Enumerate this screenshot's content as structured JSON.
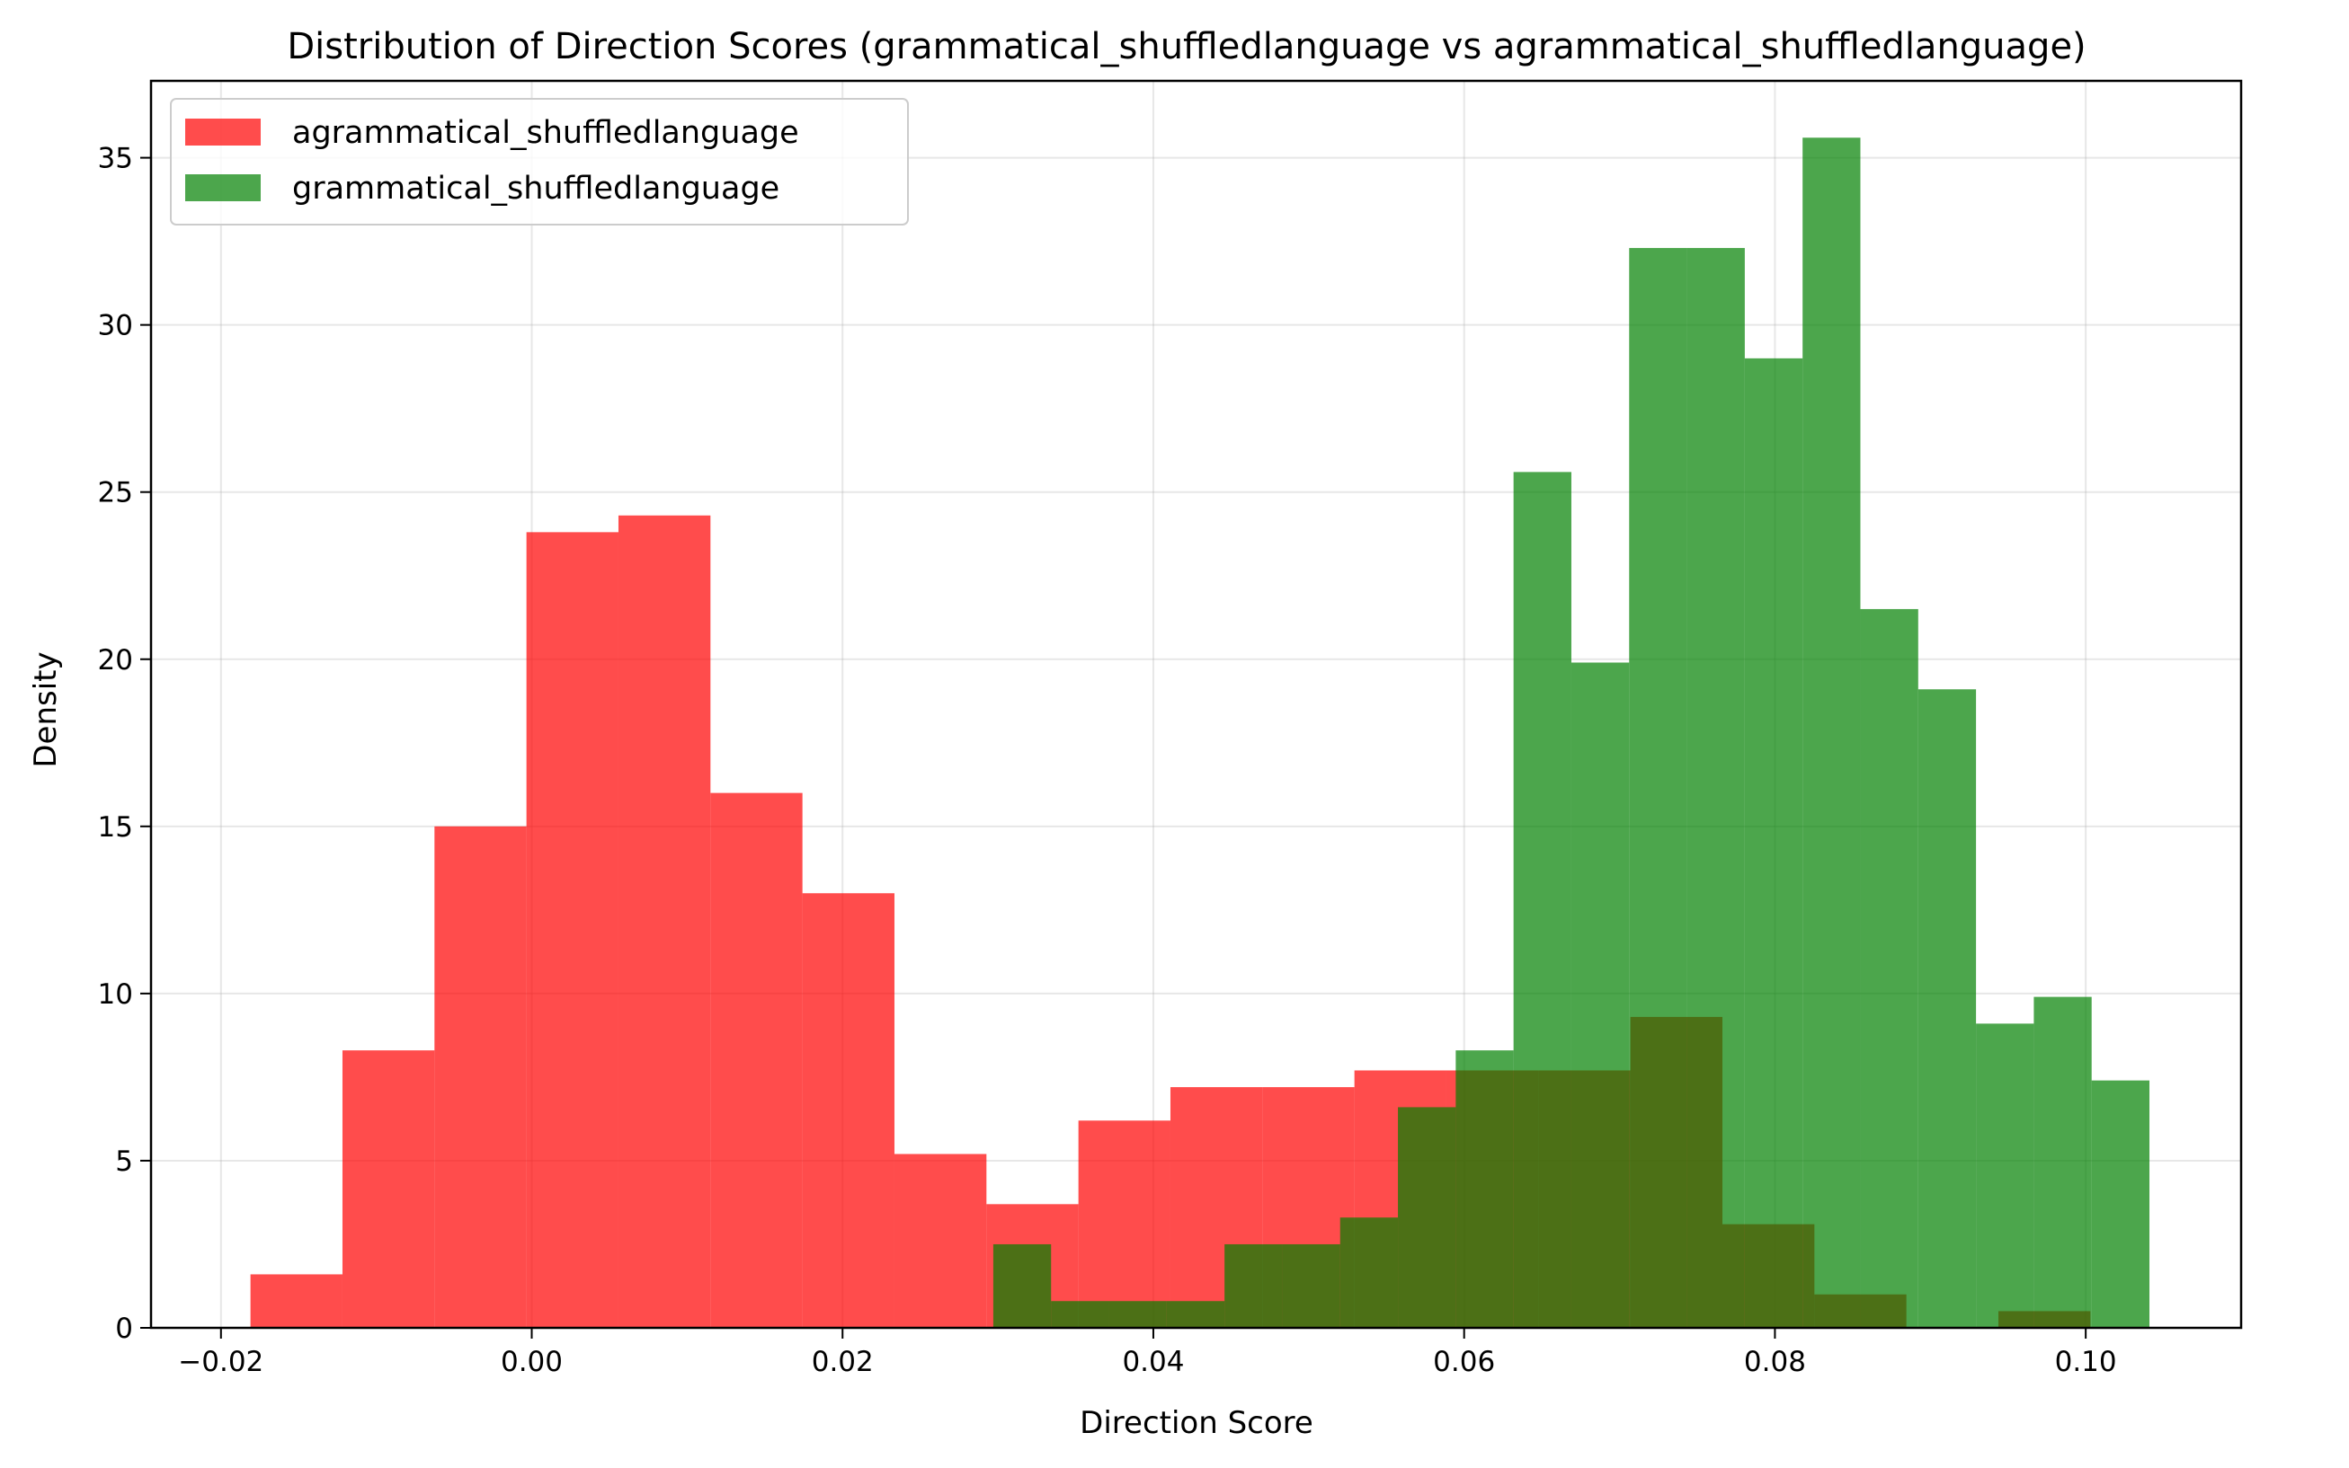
{
  "chart_data": {
    "type": "bar",
    "title": "Distribution of Direction Scores (grammatical_shuffledlanguage vs agrammatical_shuffledlanguage)",
    "xlabel": "Direction Score",
    "ylabel": "Density",
    "xlim": [
      -0.0245,
      0.11
    ],
    "ylim": [
      0,
      37.3
    ],
    "xticks": [
      -0.02,
      0.0,
      0.02,
      0.04,
      0.06,
      0.08,
      0.1
    ],
    "xtick_labels": [
      "−0.02",
      "0.00",
      "0.02",
      "0.04",
      "0.06",
      "0.08",
      "0.10"
    ],
    "yticks": [
      0,
      5,
      10,
      15,
      20,
      25,
      30,
      35
    ],
    "ytick_labels": [
      "0",
      "5",
      "10",
      "15",
      "20",
      "25",
      "30",
      "35"
    ],
    "grid": true,
    "legend_position": "top-left",
    "series": [
      {
        "name": "agrammatical_shuffledlanguage",
        "color": "#ff0000",
        "alpha": 0.7,
        "bin_edges": [
          -0.0181,
          -0.01218,
          -0.00626,
          -0.00034,
          0.00558,
          0.0115,
          0.01742,
          0.02334,
          0.02926,
          0.03518,
          0.0411,
          0.04702,
          0.05294,
          0.05886,
          0.06478,
          0.0707,
          0.07662,
          0.08254,
          0.08846,
          0.09438,
          0.1003
        ],
        "values": [
          1.6,
          8.3,
          15.0,
          23.8,
          24.3,
          16.0,
          13.0,
          5.2,
          3.7,
          6.2,
          7.2,
          7.2,
          7.7,
          7.7,
          7.7,
          9.3,
          3.1,
          1.0,
          0.0,
          0.5
        ]
      },
      {
        "name": "grammatical_shuffledlanguage",
        "color": "#008000",
        "alpha": 0.7,
        "bin_edges": [
          0.0297,
          0.03342,
          0.03714,
          0.04086,
          0.04458,
          0.0483,
          0.05202,
          0.05574,
          0.05946,
          0.06318,
          0.0669,
          0.07062,
          0.07434,
          0.07806,
          0.08178,
          0.0855,
          0.08922,
          0.09294,
          0.09666,
          0.10038,
          0.1041
        ],
        "values": [
          2.5,
          0.8,
          0.8,
          0.8,
          2.5,
          2.5,
          3.3,
          6.6,
          8.3,
          25.6,
          19.9,
          32.3,
          32.3,
          29.0,
          35.6,
          21.5,
          19.1,
          9.1,
          9.9,
          7.4
        ]
      }
    ]
  }
}
